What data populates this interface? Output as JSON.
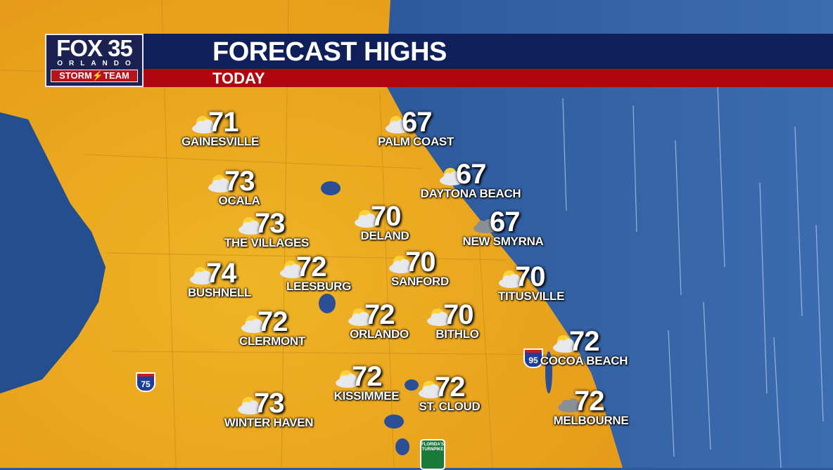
{
  "header": {
    "logo": {
      "line1": "FOX 35",
      "line2": "ORLANDO",
      "line3": "STORM⚡TEAM"
    },
    "title": "FORECAST HIGHS",
    "subtitle": "TODAY"
  },
  "colors": {
    "land": "#e8a51e",
    "ocean": "#2c5c9e",
    "header_blue": "#0e1f5a",
    "header_red": "#b0070f"
  },
  "cities": [
    {
      "name": "GAINESVILLE",
      "temp": "71",
      "icon": "partly-cloudy-icon"
    },
    {
      "name": "PALM COAST",
      "temp": "67",
      "icon": "partly-cloudy-icon"
    },
    {
      "name": "OCALA",
      "temp": "73",
      "icon": "partly-cloudy-icon"
    },
    {
      "name": "DAYTONA BEACH",
      "temp": "67",
      "icon": "partly-cloudy-icon"
    },
    {
      "name": "THE VILLAGES",
      "temp": "73",
      "icon": "partly-cloudy-icon"
    },
    {
      "name": "DELAND",
      "temp": "70",
      "icon": "partly-cloudy-icon"
    },
    {
      "name": "NEW SMYRNA",
      "temp": "67",
      "icon": "cloudy-icon"
    },
    {
      "name": "BUSHNELL",
      "temp": "74",
      "icon": "partly-cloudy-icon"
    },
    {
      "name": "LEESBURG",
      "temp": "72",
      "icon": "partly-cloudy-icon"
    },
    {
      "name": "SANFORD",
      "temp": "70",
      "icon": "partly-cloudy-icon"
    },
    {
      "name": "TITUSVILLE",
      "temp": "70",
      "icon": "partly-cloudy-icon"
    },
    {
      "name": "CLERMONT",
      "temp": "72",
      "icon": "partly-cloudy-icon"
    },
    {
      "name": "ORLANDO",
      "temp": "72",
      "icon": "partly-cloudy-icon"
    },
    {
      "name": "BITHLO",
      "temp": "70",
      "icon": "partly-cloudy-icon"
    },
    {
      "name": "COCOA BEACH",
      "temp": "72",
      "icon": "partly-cloudy-icon"
    },
    {
      "name": "KISSIMMEE",
      "temp": "72",
      "icon": "partly-cloudy-icon"
    },
    {
      "name": "ST. CLOUD",
      "temp": "72",
      "icon": "partly-cloudy-icon"
    },
    {
      "name": "WINTER HAVEN",
      "temp": "73",
      "icon": "partly-cloudy-icon"
    },
    {
      "name": "MELBOURNE",
      "temp": "72",
      "icon": "cloudy-icon"
    }
  ],
  "road_signs": {
    "i75": "75",
    "i95": "95",
    "turnpike": "FLORIDA'S TURNPIKE"
  }
}
